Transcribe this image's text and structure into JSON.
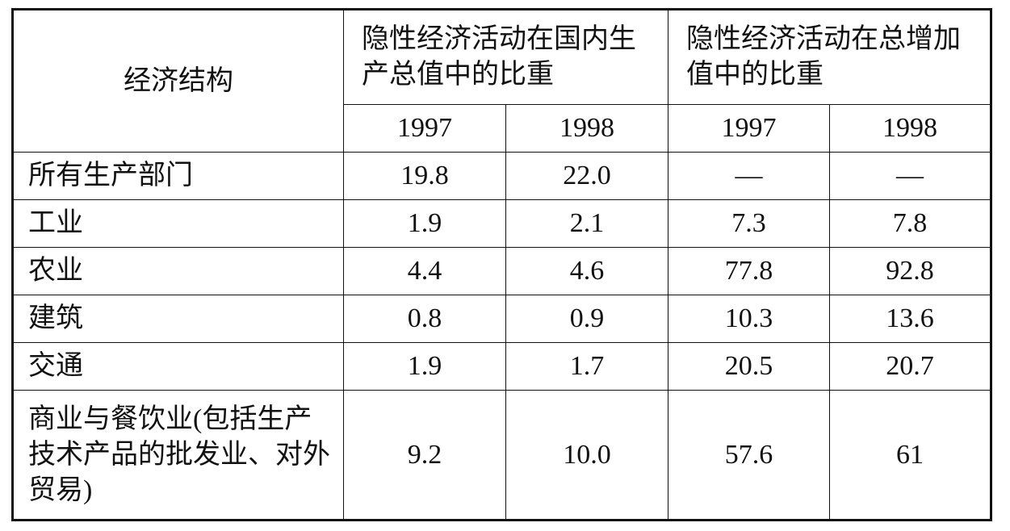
{
  "table": {
    "header": {
      "row_label": "经济结构",
      "groups": [
        "隐性经济活动在国内生产总值中的比重",
        "隐性经济活动在总增加值中的比重"
      ],
      "years": [
        "1997",
        "1998",
        "1997",
        "1998"
      ]
    },
    "rows": [
      [
        "所有生产部门",
        "19.8",
        "22.0",
        "—",
        "—"
      ],
      [
        "工业",
        "1.9",
        "2.1",
        "7.3",
        "7.8"
      ],
      [
        "农业",
        "4.4",
        "4.6",
        "77.8",
        "92.8"
      ],
      [
        "建筑",
        "0.8",
        "0.9",
        "10.3",
        "13.6"
      ],
      [
        "交通",
        "1.9",
        "1.7",
        "20.5",
        "20.7"
      ],
      [
        "商业与餐饮业(包括生产技术产品的批发业、对外贸易)",
        "9.2",
        "10.0",
        "57.6",
        "61"
      ]
    ]
  }
}
